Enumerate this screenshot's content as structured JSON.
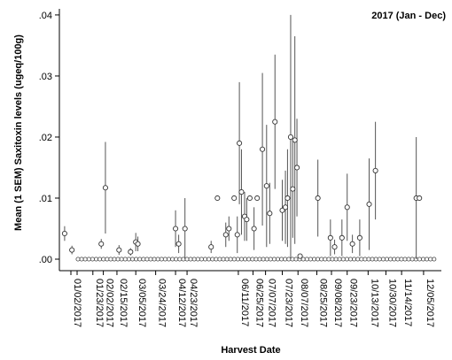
{
  "chart_data": {
    "type": "scatter",
    "title": "2017 (Jan - Dec)",
    "xlabel": "Harvest Date",
    "ylabel": "Mean (1 SEM) Saxitoxin levels (ugeq/100g)",
    "ylim": [
      0,
      0.041
    ],
    "xlim": [
      "2016-12-22",
      "2017-12-22"
    ],
    "y_ticks": [
      ".00",
      ".01",
      ".02",
      ".03",
      ".04"
    ],
    "y_tick_values": [
      0,
      0.01,
      0.02,
      0.03,
      0.04
    ],
    "x_ticks": [
      "01/02/2017",
      "01/23/2017",
      "02/02/2017",
      "02/15/2017",
      "03/05/2017",
      "03/24/2017",
      "04/12/2017",
      "04/23/2017",
      "06/11/2017",
      "06/25/2017",
      "07/07/2017",
      "07/23/2017",
      "08/07/2017",
      "08/25/2017",
      "09/08/2017",
      "09/23/2017",
      "10/13/2017",
      "10/30/2017",
      "11/14/2017",
      "12/05/2017"
    ],
    "grid": false,
    "points": [
      {
        "x": "2016-12-27",
        "y": 0.0042,
        "err": 0.0012
      },
      {
        "x": "2017-01-03",
        "y": 0.0015,
        "err": 0.0007
      },
      {
        "x": "2017-01-31",
        "y": 0.0025,
        "err": 0.0008
      },
      {
        "x": "2017-02-04",
        "y": 0.0117,
        "err": 0.0075
      },
      {
        "x": "2017-02-17",
        "y": 0.0015,
        "err": 0.0008
      },
      {
        "x": "2017-02-28",
        "y": 0.0012,
        "err": 0.0006
      },
      {
        "x": "2017-03-05",
        "y": 0.0028,
        "err": 0.0015
      },
      {
        "x": "2017-03-07",
        "y": 0.0025,
        "err": 0.0012
      },
      {
        "x": "2017-04-12",
        "y": 0.005,
        "err": 0.003
      },
      {
        "x": "2017-04-15",
        "y": 0.0025,
        "err": 0.0015
      },
      {
        "x": "2017-04-21",
        "y": 0.005,
        "err": 0.005
      },
      {
        "x": "2017-05-16",
        "y": 0.002,
        "err": 0.001
      },
      {
        "x": "2017-05-22",
        "y": 0.01,
        "err": 0.0
      },
      {
        "x": "2017-05-30",
        "y": 0.004,
        "err": 0.002
      },
      {
        "x": "2017-06-02",
        "y": 0.005,
        "err": 0.002
      },
      {
        "x": "2017-06-07",
        "y": 0.01,
        "err": 0.0
      },
      {
        "x": "2017-06-10",
        "y": 0.004,
        "err": 0.003
      },
      {
        "x": "2017-06-12",
        "y": 0.019,
        "err": 0.01
      },
      {
        "x": "2017-06-14",
        "y": 0.011,
        "err": 0.007
      },
      {
        "x": "2017-06-17",
        "y": 0.007,
        "err": 0.004
      },
      {
        "x": "2017-06-19",
        "y": 0.0065,
        "err": 0.0035
      },
      {
        "x": "2017-06-22",
        "y": 0.01,
        "err": 0.0
      },
      {
        "x": "2017-06-26",
        "y": 0.005,
        "err": 0.0035
      },
      {
        "x": "2017-06-29",
        "y": 0.01,
        "err": 0.0
      },
      {
        "x": "2017-07-04",
        "y": 0.018,
        "err": 0.0125
      },
      {
        "x": "2017-07-08",
        "y": 0.012,
        "err": 0.01
      },
      {
        "x": "2017-07-11",
        "y": 0.0075,
        "err": 0.005
      },
      {
        "x": "2017-07-16",
        "y": 0.0225,
        "err": 0.011
      },
      {
        "x": "2017-07-23",
        "y": 0.008,
        "err": 0.005
      },
      {
        "x": "2017-07-26",
        "y": 0.0085,
        "err": 0.006
      },
      {
        "x": "2017-07-28",
        "y": 0.01,
        "err": 0.008
      },
      {
        "x": "2017-07-31",
        "y": 0.02,
        "err": 0.02
      },
      {
        "x": "2017-08-02",
        "y": 0.0115,
        "err": 0.008
      },
      {
        "x": "2017-08-04",
        "y": 0.0195,
        "err": 0.017
      },
      {
        "x": "2017-08-06",
        "y": 0.015,
        "err": 0.008
      },
      {
        "x": "2017-08-09",
        "y": 0.0005,
        "err": 0.0003
      },
      {
        "x": "2017-08-26",
        "y": 0.01,
        "err": 0.0063
      },
      {
        "x": "2017-09-07",
        "y": 0.0035,
        "err": 0.003
      },
      {
        "x": "2017-09-11",
        "y": 0.002,
        "err": 0.0012
      },
      {
        "x": "2017-09-18",
        "y": 0.0035,
        "err": 0.003
      },
      {
        "x": "2017-09-23",
        "y": 0.0085,
        "err": 0.0055
      },
      {
        "x": "2017-09-28",
        "y": 0.0025,
        "err": 0.0015
      },
      {
        "x": "2017-10-05",
        "y": 0.0035,
        "err": 0.003
      },
      {
        "x": "2017-10-14",
        "y": 0.009,
        "err": 0.0075
      },
      {
        "x": "2017-10-20",
        "y": 0.0145,
        "err": 0.008
      },
      {
        "x": "2017-11-28",
        "y": 0.01,
        "err": 0.01
      },
      {
        "x": "2017-12-01",
        "y": 0.01,
        "err": 0.0
      }
    ]
  }
}
